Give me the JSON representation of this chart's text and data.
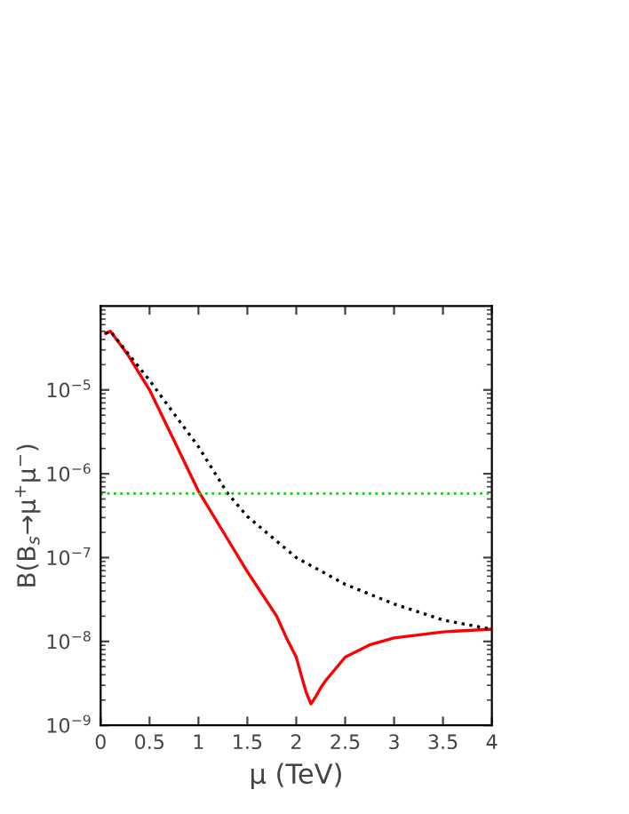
{
  "chart_data": {
    "type": "line",
    "xlabel": "μ (TeV)",
    "ylabel": "B(B$_{s}$→μ$^{+}$μ$^{−}$)",
    "log": "y",
    "xlim": [
      0,
      4
    ],
    "ylim": [
      1e-09,
      0.0001
    ],
    "xticks": [
      0,
      0.5,
      1,
      1.5,
      2,
      2.5,
      3,
      3.5,
      4
    ],
    "yticks": [
      {
        "value": 1e-09,
        "label": "10$^{−9}$"
      },
      {
        "value": 1e-08,
        "label": "10$^{−8}$"
      },
      {
        "value": 1e-07,
        "label": "10$^{−7}$"
      },
      {
        "value": 1e-06,
        "label": "10$^{−6}$"
      },
      {
        "value": 1e-05,
        "label": "10$^{−5}$"
      }
    ],
    "grid": false,
    "legend": false,
    "series": [
      {
        "color": "#ff0000",
        "line_style": "solid",
        "x": [
          0.05,
          0.1,
          0.28,
          0.5,
          0.75,
          1.0,
          1.5,
          1.8,
          1.9,
          2.0,
          2.05,
          2.1,
          2.15,
          2.2,
          2.25,
          2.3,
          2.4,
          2.5,
          2.75,
          3.0,
          3.5,
          4.0
        ],
        "values": [
          4.7e-05,
          5e-05,
          2.6e-05,
          1e-05,
          2.5e-06,
          6.2e-07,
          6.8e-08,
          2e-08,
          1.1e-08,
          6.5e-09,
          4e-09,
          2.5e-09,
          1.8e-09,
          2.2e-09,
          2.8e-09,
          3.4e-09,
          4.7e-09,
          6.5e-09,
          9.1e-09,
          1.1e-08,
          1.3e-08,
          1.4e-08
        ]
      },
      {
        "color": "#000000",
        "line_style": "dotted",
        "x": [
          0.05,
          0.1,
          0.5,
          0.75,
          1.0,
          1.3,
          1.5,
          2.0,
          2.5,
          3.0,
          3.5,
          4.0
        ],
        "values": [
          4.7e-05,
          5e-05,
          1.3e-05,
          5.2e-06,
          2.1e-06,
          5.8e-07,
          3.1e-07,
          1e-07,
          4.8e-08,
          2.8e-08,
          1.8e-08,
          1.4e-08
        ]
      }
    ],
    "ref_lines": [
      {
        "axis": "y",
        "value": 5.8e-07,
        "color": "#00dd00",
        "line_style": "dotted"
      }
    ]
  }
}
